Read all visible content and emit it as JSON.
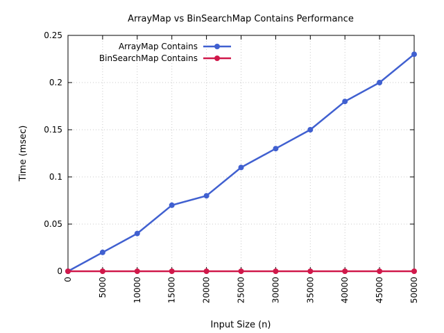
{
  "chart_data": {
    "type": "line",
    "title": "ArrayMap vs BinSearchMap Contains Performance",
    "xlabel": "Input Size (n)",
    "ylabel": "Time (msec)",
    "x": [
      0,
      5000,
      10000,
      15000,
      20000,
      25000,
      30000,
      35000,
      40000,
      45000,
      50000
    ],
    "xlim": [
      0,
      50000
    ],
    "ylim": [
      0,
      0.25
    ],
    "xticks": [
      "0",
      "5000",
      "10000",
      "15000",
      "20000",
      "25000",
      "30000",
      "35000",
      "40000",
      "45000",
      "50000"
    ],
    "yticks": [
      "0",
      "0.05",
      "0.1",
      "0.15",
      "0.2",
      "0.25"
    ],
    "grid": true,
    "legend_position": "top-left",
    "series": [
      {
        "name": "ArrayMap Contains",
        "color": "#4060d0",
        "values": [
          0,
          0.02,
          0.04,
          0.07,
          0.08,
          0.11,
          0.13,
          0.15,
          0.18,
          0.2,
          0.23
        ]
      },
      {
        "name": "BinSearchMap Contains",
        "color": "#d0184a",
        "values": [
          0,
          0,
          0,
          0,
          0,
          0,
          0,
          0,
          0,
          0,
          0
        ]
      }
    ]
  }
}
